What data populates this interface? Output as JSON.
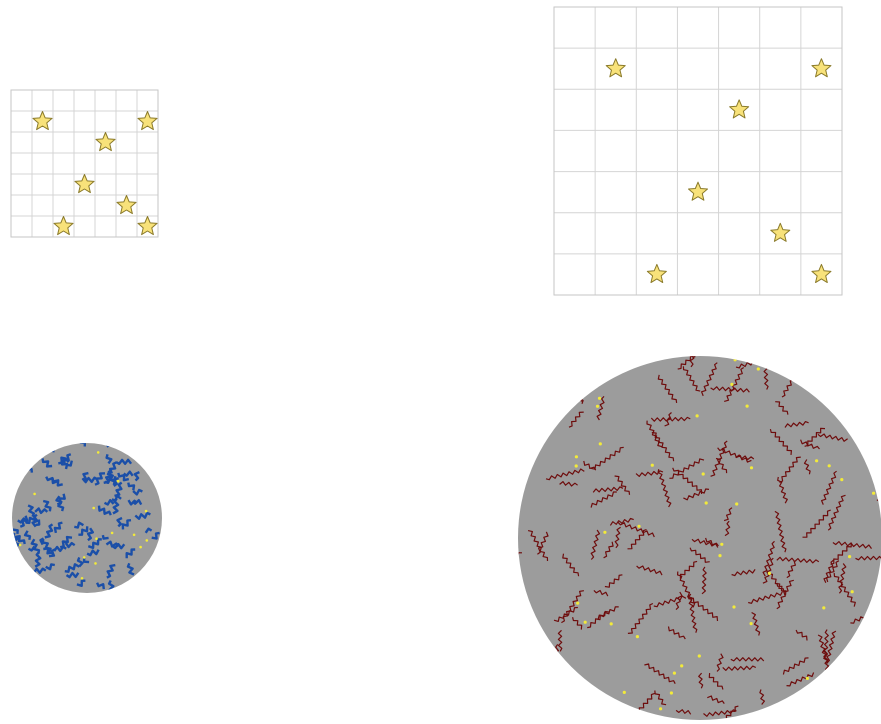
{
  "colors": {
    "background": "#ffffff",
    "grid_line": "#d4d4d4",
    "grid_border": "#c6c6c6",
    "star_fill": "#f8e27a",
    "star_stroke": "#8a7a2a",
    "sphere_fill": "#9c9c9c",
    "sphere_dots": "#f2ea3a",
    "small_sphere_marks": "#1b4fa8",
    "large_sphere_marks": "#6e0d0d"
  },
  "icons": {
    "star": "star-icon"
  },
  "small_grid": {
    "rows": 7,
    "cols": 7,
    "star_count": 7
  },
  "large_grid": {
    "rows": 7,
    "cols": 7,
    "star_count": 7
  },
  "small_sphere": {
    "mark_color": "blue",
    "dot_color": "yellow"
  },
  "large_sphere": {
    "mark_color": "dark-red",
    "dot_color": "yellow"
  }
}
